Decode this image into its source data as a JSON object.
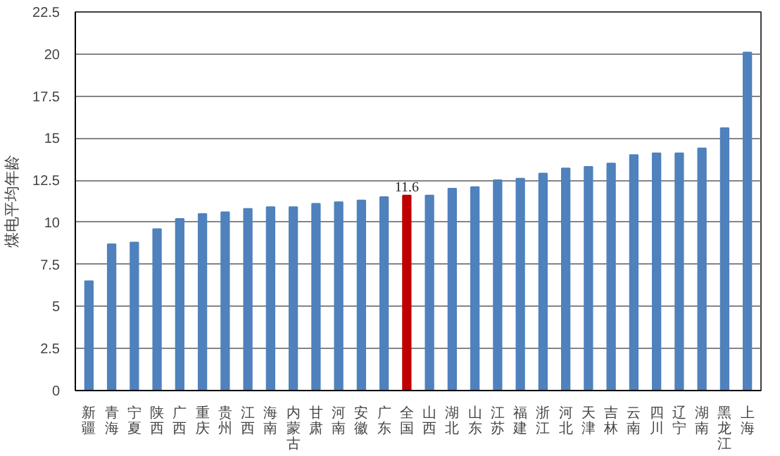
{
  "chart_data": {
    "type": "bar",
    "ylabel": "煤电平均年龄",
    "categories": [
      "新疆",
      "青海",
      "宁夏",
      "陕西",
      "广西",
      "重庆",
      "贵州",
      "江西",
      "海南",
      "内蒙古",
      "甘肃",
      "河南",
      "安徽",
      "广东",
      "全国",
      "山西",
      "湖北",
      "山东",
      "江苏",
      "福建",
      "浙江",
      "河北",
      "天津",
      "吉林",
      "云南",
      "四川",
      "辽宁",
      "湖南",
      "黑龙江",
      "上海"
    ],
    "values": [
      6.5,
      8.7,
      8.8,
      9.6,
      10.2,
      10.5,
      10.6,
      10.8,
      10.9,
      10.9,
      11.1,
      11.2,
      11.3,
      11.5,
      11.6,
      11.6,
      12.0,
      12.1,
      12.5,
      12.6,
      12.9,
      13.2,
      13.3,
      13.5,
      14.0,
      14.1,
      14.1,
      14.4,
      15.6,
      20.1
    ],
    "colors": [
      "#4f81bd",
      "#4f81bd",
      "#4f81bd",
      "#4f81bd",
      "#4f81bd",
      "#4f81bd",
      "#4f81bd",
      "#4f81bd",
      "#4f81bd",
      "#4f81bd",
      "#4f81bd",
      "#4f81bd",
      "#4f81bd",
      "#4f81bd",
      "#c00000",
      "#4f81bd",
      "#4f81bd",
      "#4f81bd",
      "#4f81bd",
      "#4f81bd",
      "#4f81bd",
      "#4f81bd",
      "#4f81bd",
      "#4f81bd",
      "#4f81bd",
      "#4f81bd",
      "#4f81bd",
      "#4f81bd",
      "#4f81bd",
      "#4f81bd"
    ],
    "value_labels": [
      null,
      null,
      null,
      null,
      null,
      null,
      null,
      null,
      null,
      null,
      null,
      null,
      null,
      null,
      "11.6",
      null,
      null,
      null,
      null,
      null,
      null,
      null,
      null,
      null,
      null,
      null,
      null,
      null,
      null,
      null
    ],
    "ylim": [
      0,
      22.5
    ],
    "yticks": [
      0,
      2.5,
      5,
      7.5,
      10,
      12.5,
      15,
      17.5,
      20,
      22.5
    ],
    "grid": "y"
  }
}
